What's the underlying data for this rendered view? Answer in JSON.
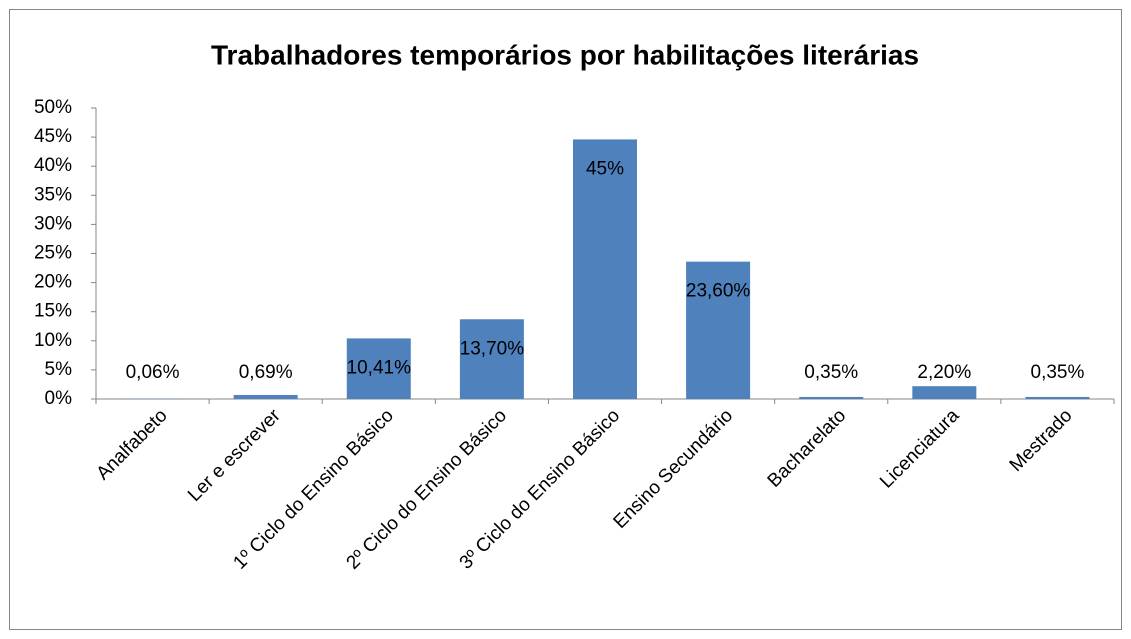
{
  "chart_data": {
    "type": "bar",
    "title": "Trabalhadores temporários por habilitações literárias",
    "categories": [
      "Analfabeto",
      "Ler e escrever",
      "1º Ciclo do Ensino Básico",
      "2º Ciclo do Ensino Básico",
      "3º Ciclo do Ensino Básico",
      "Ensino Secundário",
      "Bacharelato",
      "Licenciatura",
      "Mestrado"
    ],
    "values": [
      0.06,
      0.69,
      10.41,
      13.7,
      44.6,
      23.6,
      0.35,
      2.2,
      0.35
    ],
    "value_labels": [
      "0,06%",
      "0,69%",
      "10,41%",
      "13,70%",
      "45%",
      "23,60%",
      "0,35%",
      "2,20%",
      "0,35%"
    ],
    "color": "#4f81bd",
    "ylim": [
      0,
      50
    ],
    "yticks": [
      {
        "value": 0,
        "label": "0%"
      },
      {
        "value": 5,
        "label": "5%"
      },
      {
        "value": 10,
        "label": "10%"
      },
      {
        "value": 15,
        "label": "15%"
      },
      {
        "value": 20,
        "label": "20%"
      },
      {
        "value": 25,
        "label": "25%"
      },
      {
        "value": 30,
        "label": "30%"
      },
      {
        "value": 35,
        "label": "35%"
      },
      {
        "value": 40,
        "label": "40%"
      },
      {
        "value": 45,
        "label": "45%"
      },
      {
        "value": 50,
        "label": "50%"
      }
    ],
    "grid": false
  }
}
